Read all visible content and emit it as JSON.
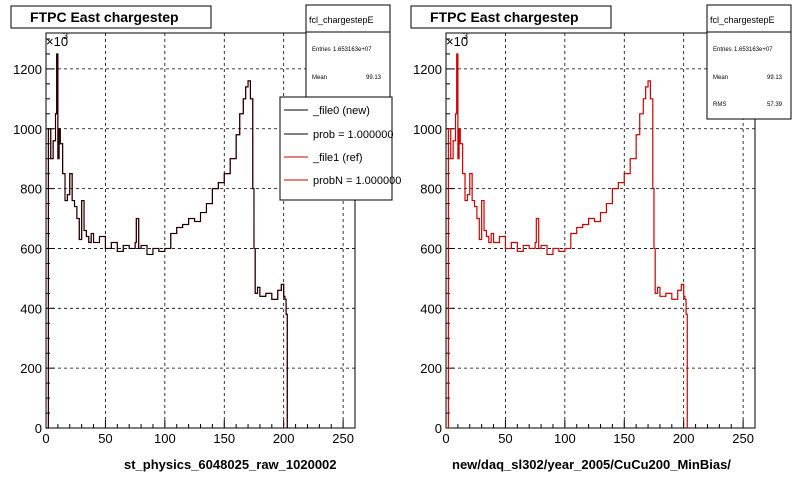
{
  "panels": [
    {
      "title": "FTPC East chargestep",
      "xlabel": "st_physics_6048025_raw_1020002",
      "exponent_base": "×10",
      "exponent_power": "3",
      "stats": {
        "name": "fcl_chargestepE",
        "rows": [
          {
            "label": "Entries",
            "value": "1.653163e+07"
          },
          {
            "label": "Mean",
            "value": "99.13"
          }
        ]
      },
      "legend": [
        {
          "label": "_file0 (new)",
          "color": "#000000"
        },
        {
          "label": "prob = 1.000000",
          "color": "#000000"
        },
        {
          "label": "_file1 (ref)",
          "color": "#cc0000"
        },
        {
          "label": "probN = 1.000000",
          "color": "#cc0000"
        }
      ]
    },
    {
      "title": "FTPC East chargestep",
      "xlabel": "new/daq_sl302/year_2005/CuCu200_MinBias/",
      "exponent_base": "×10",
      "exponent_power": "3",
      "stats": {
        "name": "fcl_chargestepE",
        "rows": [
          {
            "label": "Entries",
            "value": "1.653163e+07"
          },
          {
            "label": "Mean",
            "value": "99.13"
          },
          {
            "label": "RMS",
            "value": "57.39"
          }
        ]
      },
      "legend": []
    }
  ],
  "chart_data": [
    {
      "type": "line",
      "title": "FTPC East chargestep",
      "xlabel": "st_physics_6048025_raw_1020002",
      "ylabel": "",
      "xlim": [
        0,
        260
      ],
      "ylim": [
        0,
        1320
      ],
      "x_ticks": [
        0,
        50,
        100,
        150,
        200,
        250
      ],
      "y_ticks": [
        0,
        200,
        400,
        600,
        800,
        1000,
        1200
      ],
      "y_multiplier": "×10^3",
      "grid": true,
      "series": [
        {
          "name": "_file1 (ref)",
          "color": "#cc0000",
          "x": [
            0,
            2,
            4,
            6,
            8,
            9,
            10,
            11,
            12,
            14,
            16,
            18,
            20,
            22,
            24,
            26,
            28,
            30,
            32,
            34,
            36,
            38,
            40,
            45,
            50,
            55,
            60,
            65,
            70,
            75,
            76,
            78,
            80,
            85,
            90,
            95,
            100,
            105,
            110,
            115,
            120,
            125,
            130,
            135,
            140,
            145,
            150,
            155,
            160,
            163,
            166,
            168,
            170,
            172,
            174,
            175,
            176,
            178,
            180,
            185,
            190,
            195,
            198,
            200,
            201,
            202,
            203
          ],
          "values": [
            0,
            1000,
            900,
            960,
            1050,
            1250,
            900,
            1000,
            950,
            850,
            760,
            780,
            850,
            760,
            740,
            700,
            630,
            760,
            660,
            640,
            620,
            650,
            620,
            640,
            600,
            620,
            590,
            610,
            600,
            620,
            700,
            600,
            610,
            580,
            600,
            590,
            600,
            650,
            670,
            680,
            700,
            690,
            720,
            750,
            800,
            820,
            850,
            900,
            980,
            1050,
            1100,
            1140,
            1160,
            1100,
            800,
            600,
            450,
            470,
            440,
            450,
            430,
            460,
            480,
            440,
            430,
            380,
            0
          ]
        },
        {
          "name": "_file0 (new)",
          "color": "#000000",
          "x": [
            0,
            2,
            4,
            6,
            8,
            9,
            10,
            11,
            12,
            14,
            16,
            18,
            20,
            22,
            24,
            26,
            28,
            30,
            32,
            34,
            36,
            38,
            40,
            45,
            50,
            55,
            60,
            65,
            70,
            75,
            76,
            78,
            80,
            85,
            90,
            95,
            100,
            105,
            110,
            115,
            120,
            125,
            130,
            135,
            140,
            145,
            150,
            155,
            160,
            163,
            166,
            168,
            170,
            172,
            174,
            175,
            176,
            178,
            180,
            185,
            190,
            195,
            198,
            200,
            201,
            202,
            203
          ],
          "values": [
            0,
            1000,
            900,
            960,
            1050,
            1250,
            900,
            1000,
            950,
            850,
            760,
            780,
            850,
            760,
            740,
            700,
            630,
            760,
            660,
            640,
            620,
            650,
            620,
            640,
            600,
            620,
            590,
            610,
            600,
            620,
            700,
            600,
            610,
            580,
            600,
            590,
            600,
            650,
            670,
            680,
            700,
            690,
            720,
            750,
            800,
            820,
            850,
            900,
            980,
            1050,
            1100,
            1140,
            1160,
            1100,
            800,
            600,
            450,
            470,
            440,
            450,
            430,
            460,
            480,
            440,
            430,
            380,
            0
          ]
        }
      ]
    },
    {
      "type": "line",
      "title": "FTPC East chargestep",
      "xlabel": "new/daq_sl302/year_2005/CuCu200_MinBias/",
      "ylabel": "",
      "xlim": [
        0,
        260
      ],
      "ylim": [
        0,
        1320
      ],
      "x_ticks": [
        0,
        50,
        100,
        150,
        200,
        250
      ],
      "y_ticks": [
        0,
        200,
        400,
        600,
        800,
        1000,
        1200
      ],
      "y_multiplier": "×10^3",
      "grid": true,
      "series": [
        {
          "color": "#cc0000",
          "x": [
            0,
            2,
            4,
            6,
            8,
            9,
            10,
            11,
            12,
            14,
            16,
            18,
            20,
            22,
            24,
            26,
            28,
            30,
            32,
            34,
            36,
            38,
            40,
            45,
            50,
            55,
            60,
            65,
            70,
            75,
            76,
            78,
            80,
            85,
            90,
            95,
            100,
            105,
            110,
            115,
            120,
            125,
            130,
            135,
            140,
            145,
            150,
            155,
            160,
            163,
            166,
            168,
            170,
            172,
            174,
            175,
            176,
            178,
            180,
            185,
            190,
            195,
            198,
            200,
            201,
            202,
            203
          ],
          "values": [
            0,
            1000,
            900,
            960,
            1050,
            1250,
            900,
            1000,
            950,
            850,
            760,
            780,
            850,
            760,
            740,
            700,
            630,
            760,
            660,
            640,
            620,
            650,
            620,
            640,
            600,
            620,
            590,
            610,
            600,
            620,
            700,
            600,
            610,
            580,
            600,
            590,
            600,
            650,
            670,
            680,
            700,
            690,
            720,
            750,
            800,
            820,
            850,
            900,
            980,
            1050,
            1100,
            1140,
            1160,
            1100,
            800,
            600,
            450,
            470,
            440,
            450,
            430,
            460,
            480,
            440,
            430,
            380,
            0
          ]
        }
      ]
    }
  ]
}
